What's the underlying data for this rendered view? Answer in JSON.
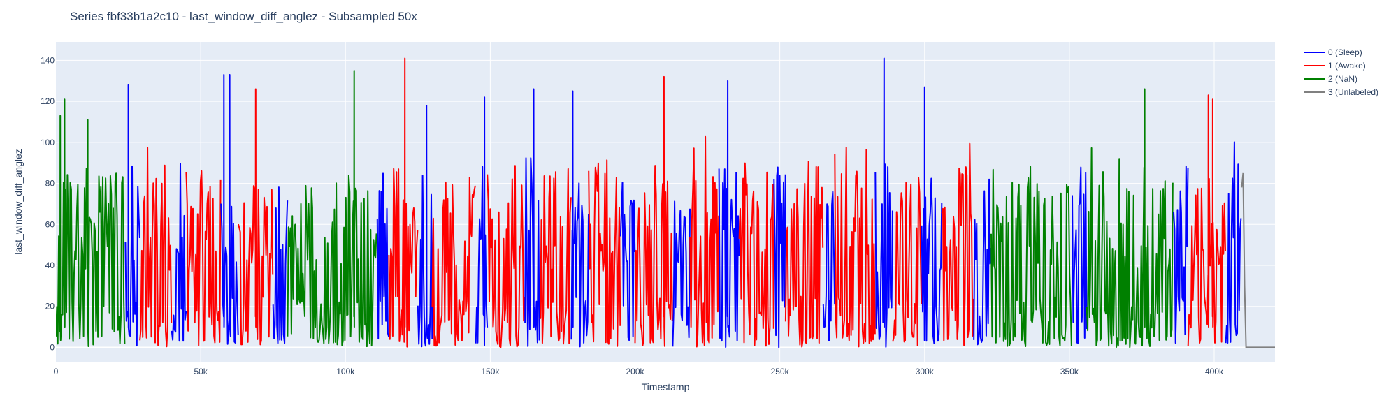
{
  "chart_data": {
    "type": "line",
    "title": "Series fbf33b1a2c10 - last_window_diff_anglez - Subsampled 50x",
    "xlabel": "Timestamp",
    "ylabel": "last_window_diff_anglez",
    "xlim": [
      0,
      421000
    ],
    "ylim": [
      -7,
      149
    ],
    "x_ticks": [
      0,
      50000,
      100000,
      150000,
      200000,
      250000,
      300000,
      350000,
      400000
    ],
    "x_tick_labels": [
      "0",
      "50k",
      "100k",
      "150k",
      "200k",
      "250k",
      "300k",
      "350k",
      "400k"
    ],
    "y_ticks": [
      0,
      20,
      40,
      60,
      80,
      100,
      120,
      140
    ],
    "y_tick_labels": [
      "0",
      "20",
      "40",
      "60",
      "80",
      "100",
      "120",
      "140"
    ],
    "grid": true,
    "legend_position": "top-right",
    "series": [
      {
        "name": "0 (Sleep)",
        "color": "#0000ff"
      },
      {
        "name": "1 (Awake)",
        "color": "#ff0000"
      },
      {
        "name": "2 (NaN)",
        "color": "#008000"
      },
      {
        "name": "3 (Unlabeled)",
        "color": "#808080"
      }
    ],
    "segments": [
      {
        "series": 2,
        "x0": 0,
        "x1": 24000,
        "seed": 11
      },
      {
        "series": 0,
        "x0": 24000,
        "x1": 29000,
        "seed": 12
      },
      {
        "series": 1,
        "x0": 29000,
        "x1": 40000,
        "seed": 13
      },
      {
        "series": 0,
        "x0": 40000,
        "x1": 45000,
        "seed": 14
      },
      {
        "series": 1,
        "x0": 45000,
        "x1": 57000,
        "seed": 15
      },
      {
        "series": 0,
        "x0": 57000,
        "x1": 63000,
        "seed": 16
      },
      {
        "series": 1,
        "x0": 63000,
        "x1": 75000,
        "seed": 17
      },
      {
        "series": 0,
        "x0": 75000,
        "x1": 80000,
        "seed": 18
      },
      {
        "series": 2,
        "x0": 80000,
        "x1": 111000,
        "seed": 19
      },
      {
        "series": 0,
        "x0": 111000,
        "x1": 115000,
        "seed": 20
      },
      {
        "series": 1,
        "x0": 115000,
        "x1": 125000,
        "seed": 21
      },
      {
        "series": 0,
        "x0": 125000,
        "x1": 130000,
        "seed": 22
      },
      {
        "series": 1,
        "x0": 130000,
        "x1": 145000,
        "seed": 23
      },
      {
        "series": 0,
        "x0": 145000,
        "x1": 149000,
        "seed": 24
      },
      {
        "series": 1,
        "x0": 149000,
        "x1": 162000,
        "seed": 25
      },
      {
        "series": 0,
        "x0": 162000,
        "x1": 167000,
        "seed": 26
      },
      {
        "series": 1,
        "x0": 167000,
        "x1": 178000,
        "seed": 27
      },
      {
        "series": 0,
        "x0": 178000,
        "x1": 184000,
        "seed": 28
      },
      {
        "series": 1,
        "x0": 184000,
        "x1": 195000,
        "seed": 29
      },
      {
        "series": 0,
        "x0": 195000,
        "x1": 200000,
        "seed": 30
      },
      {
        "series": 1,
        "x0": 200000,
        "x1": 213000,
        "seed": 31
      },
      {
        "series": 0,
        "x0": 213000,
        "x1": 219000,
        "seed": 32
      },
      {
        "series": 1,
        "x0": 219000,
        "x1": 229000,
        "seed": 33
      },
      {
        "series": 0,
        "x0": 229000,
        "x1": 236000,
        "seed": 34
      },
      {
        "series": 1,
        "x0": 236000,
        "x1": 248000,
        "seed": 35
      },
      {
        "series": 0,
        "x0": 248000,
        "x1": 252000,
        "seed": 36
      },
      {
        "series": 1,
        "x0": 252000,
        "x1": 265000,
        "seed": 37
      },
      {
        "series": 0,
        "x0": 265000,
        "x1": 269000,
        "seed": 38
      },
      {
        "series": 1,
        "x0": 269000,
        "x1": 283000,
        "seed": 39
      },
      {
        "series": 0,
        "x0": 283000,
        "x1": 289000,
        "seed": 40
      },
      {
        "series": 1,
        "x0": 289000,
        "x1": 299000,
        "seed": 41
      },
      {
        "series": 0,
        "x0": 299000,
        "x1": 306000,
        "seed": 42
      },
      {
        "series": 1,
        "x0": 306000,
        "x1": 317000,
        "seed": 43
      },
      {
        "series": 0,
        "x0": 317000,
        "x1": 323000,
        "seed": 44
      },
      {
        "series": 2,
        "x0": 323000,
        "x1": 351000,
        "seed": 45
      },
      {
        "series": 0,
        "x0": 351000,
        "x1": 356000,
        "seed": 46
      },
      {
        "series": 2,
        "x0": 356000,
        "x1": 386000,
        "seed": 47
      },
      {
        "series": 0,
        "x0": 386000,
        "x1": 391000,
        "seed": 48
      },
      {
        "series": 1,
        "x0": 391000,
        "x1": 404000,
        "seed": 49
      },
      {
        "series": 0,
        "x0": 404000,
        "x1": 409500,
        "seed": 50
      }
    ],
    "unlabeled_points": [
      [
        409500,
        78
      ],
      [
        410000,
        85
      ],
      [
        410500,
        30
      ],
      [
        411000,
        0
      ],
      [
        421000,
        0
      ]
    ],
    "peaks": [
      {
        "series": 2,
        "x": 1500,
        "y": 113
      },
      {
        "series": 2,
        "x": 3000,
        "y": 121
      },
      {
        "series": 2,
        "x": 11000,
        "y": 111
      },
      {
        "series": 0,
        "x": 25000,
        "y": 128
      },
      {
        "series": 0,
        "x": 58000,
        "y": 133
      },
      {
        "series": 0,
        "x": 60000,
        "y": 133
      },
      {
        "series": 1,
        "x": 69000,
        "y": 126
      },
      {
        "series": 0,
        "x": 74000,
        "y": 126
      },
      {
        "series": 2,
        "x": 103000,
        "y": 135
      },
      {
        "series": 0,
        "x": 109000,
        "y": 129
      },
      {
        "series": 1,
        "x": 120500,
        "y": 141
      },
      {
        "series": 0,
        "x": 128000,
        "y": 118
      },
      {
        "series": 0,
        "x": 148000,
        "y": 122
      },
      {
        "series": 0,
        "x": 165000,
        "y": 126
      },
      {
        "series": 0,
        "x": 178500,
        "y": 125
      },
      {
        "series": 1,
        "x": 210000,
        "y": 132
      },
      {
        "series": 0,
        "x": 232000,
        "y": 130
      },
      {
        "series": 0,
        "x": 286000,
        "y": 141
      },
      {
        "series": 0,
        "x": 300000,
        "y": 127
      },
      {
        "series": 2,
        "x": 376000,
        "y": 126
      },
      {
        "series": 1,
        "x": 398000,
        "y": 123
      },
      {
        "series": 1,
        "x": 399500,
        "y": 121
      }
    ]
  }
}
